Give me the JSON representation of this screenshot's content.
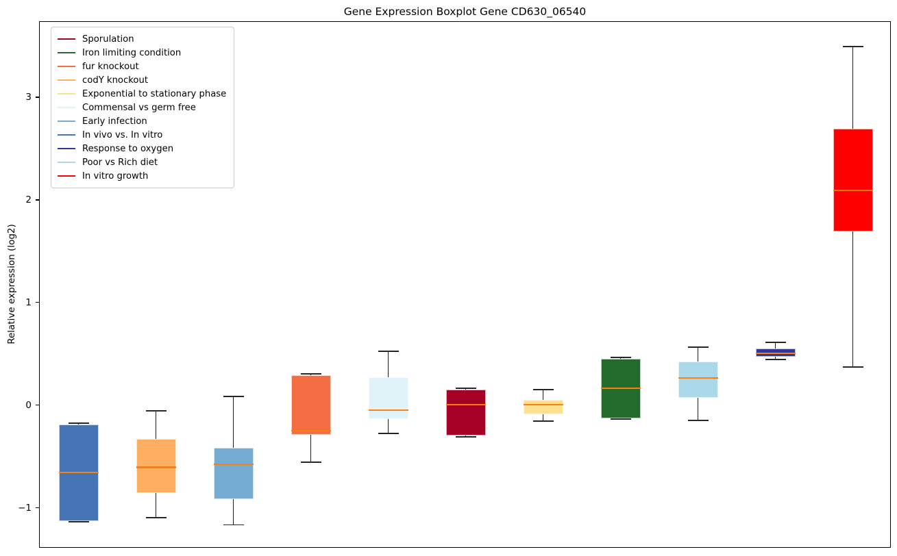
{
  "chart_data": {
    "type": "boxplot",
    "title": "Gene Expression Boxplot Gene CD630_06540",
    "xlabel": "",
    "ylabel": "Relative expression (log2)",
    "ylim": [
      -1.39,
      3.74
    ],
    "yticks": [
      -1,
      0,
      1,
      2,
      3
    ],
    "ytick_labels": [
      "−1",
      "0",
      "1",
      "2",
      "3"
    ],
    "grid": false,
    "legend_position": "upper-left",
    "median_color": "#ff7f0e",
    "whisker_color": "#1a1a1a",
    "legend_entries": [
      {
        "label": "Sporulation",
        "color": "#a50026"
      },
      {
        "label": "Iron limiting condition",
        "color": "#236b2d"
      },
      {
        "label": "fur knockout",
        "color": "#f46d43"
      },
      {
        "label": "codY knockout",
        "color": "#fdae61"
      },
      {
        "label": "Exponential to stationary phase",
        "color": "#fee090"
      },
      {
        "label": "Commensal vs germ free",
        "color": "#e0f3f8"
      },
      {
        "label": "Early infection",
        "color": "#74add1"
      },
      {
        "label": "In vivo vs. In vitro",
        "color": "#4575b4"
      },
      {
        "label": "Response to oxygen",
        "color": "#313695"
      },
      {
        "label": "Poor vs Rich diet",
        "color": "#abd9e9"
      },
      {
        "label": "In vitro growth",
        "color": "#ff0000"
      }
    ],
    "boxes": [
      {
        "condition": "In vivo vs. In vitro",
        "color": "#4575b4",
        "whisker_low": -1.13,
        "q1": -1.12,
        "median": -0.65,
        "q3": -0.18,
        "whisker_high": -0.17
      },
      {
        "condition": "codY knockout",
        "color": "#fdae61",
        "whisker_low": -1.09,
        "q1": -0.85,
        "median": -0.6,
        "q3": -0.32,
        "whisker_high": -0.05
      },
      {
        "condition": "Early infection",
        "color": "#74add1",
        "whisker_low": -1.16,
        "q1": -0.91,
        "median": -0.57,
        "q3": -0.41,
        "whisker_high": 0.09
      },
      {
        "condition": "fur knockout",
        "color": "#f46d43",
        "whisker_low": -0.55,
        "q1": -0.28,
        "median": -0.24,
        "q3": 0.3,
        "whisker_high": 0.31
      },
      {
        "condition": "Commensal vs germ free",
        "color": "#e0f3f8",
        "whisker_low": -0.27,
        "q1": -0.13,
        "median": -0.04,
        "q3": 0.28,
        "whisker_high": 0.53
      },
      {
        "condition": "Sporulation",
        "color": "#a50026",
        "whisker_low": -0.3,
        "q1": -0.29,
        "median": 0.01,
        "q3": 0.16,
        "whisker_high": 0.17
      },
      {
        "condition": "Exponential to stationary phase",
        "color": "#fee090",
        "whisker_low": -0.15,
        "q1": -0.08,
        "median": 0.01,
        "q3": 0.06,
        "whisker_high": 0.16
      },
      {
        "condition": "Iron limiting condition",
        "color": "#236b2d",
        "whisker_low": -0.13,
        "q1": -0.12,
        "median": 0.17,
        "q3": 0.46,
        "whisker_high": 0.47
      },
      {
        "condition": "Poor vs Rich diet",
        "color": "#abd9e9",
        "whisker_low": -0.14,
        "q1": 0.08,
        "median": 0.27,
        "q3": 0.43,
        "whisker_high": 0.57
      },
      {
        "condition": "Response to oxygen",
        "color": "#313695",
        "whisker_low": 0.45,
        "q1": 0.48,
        "median": 0.51,
        "q3": 0.56,
        "whisker_high": 0.62
      },
      {
        "condition": "In vitro growth",
        "color": "#ff0000",
        "whisker_low": 0.38,
        "q1": 1.7,
        "median": 2.1,
        "q3": 2.7,
        "whisker_high": 3.5
      }
    ]
  }
}
